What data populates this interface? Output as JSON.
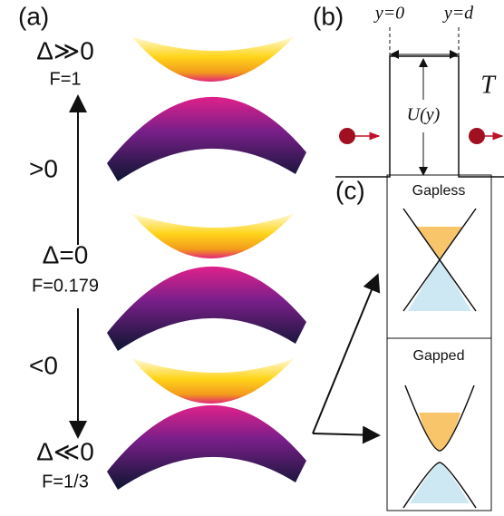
{
  "panel_a": {
    "label": "(a)",
    "levels": [
      {
        "delta": "Δ≫0",
        "f": "F=1"
      },
      {
        "delta": "Δ=0",
        "f": "F=0.179"
      },
      {
        "delta": "Δ≪0",
        "f": "F=1/3"
      }
    ],
    "upper_arrow": ">0",
    "lower_arrow": "<0"
  },
  "panel_b": {
    "label": "(b)",
    "left_edge": "y=0",
    "right_edge": "y=d",
    "potential": "U(y)",
    "transmission": "T"
  },
  "panel_c": {
    "label": "(c)",
    "top_box": "Gapless",
    "bottom_box": "Gapped"
  }
}
